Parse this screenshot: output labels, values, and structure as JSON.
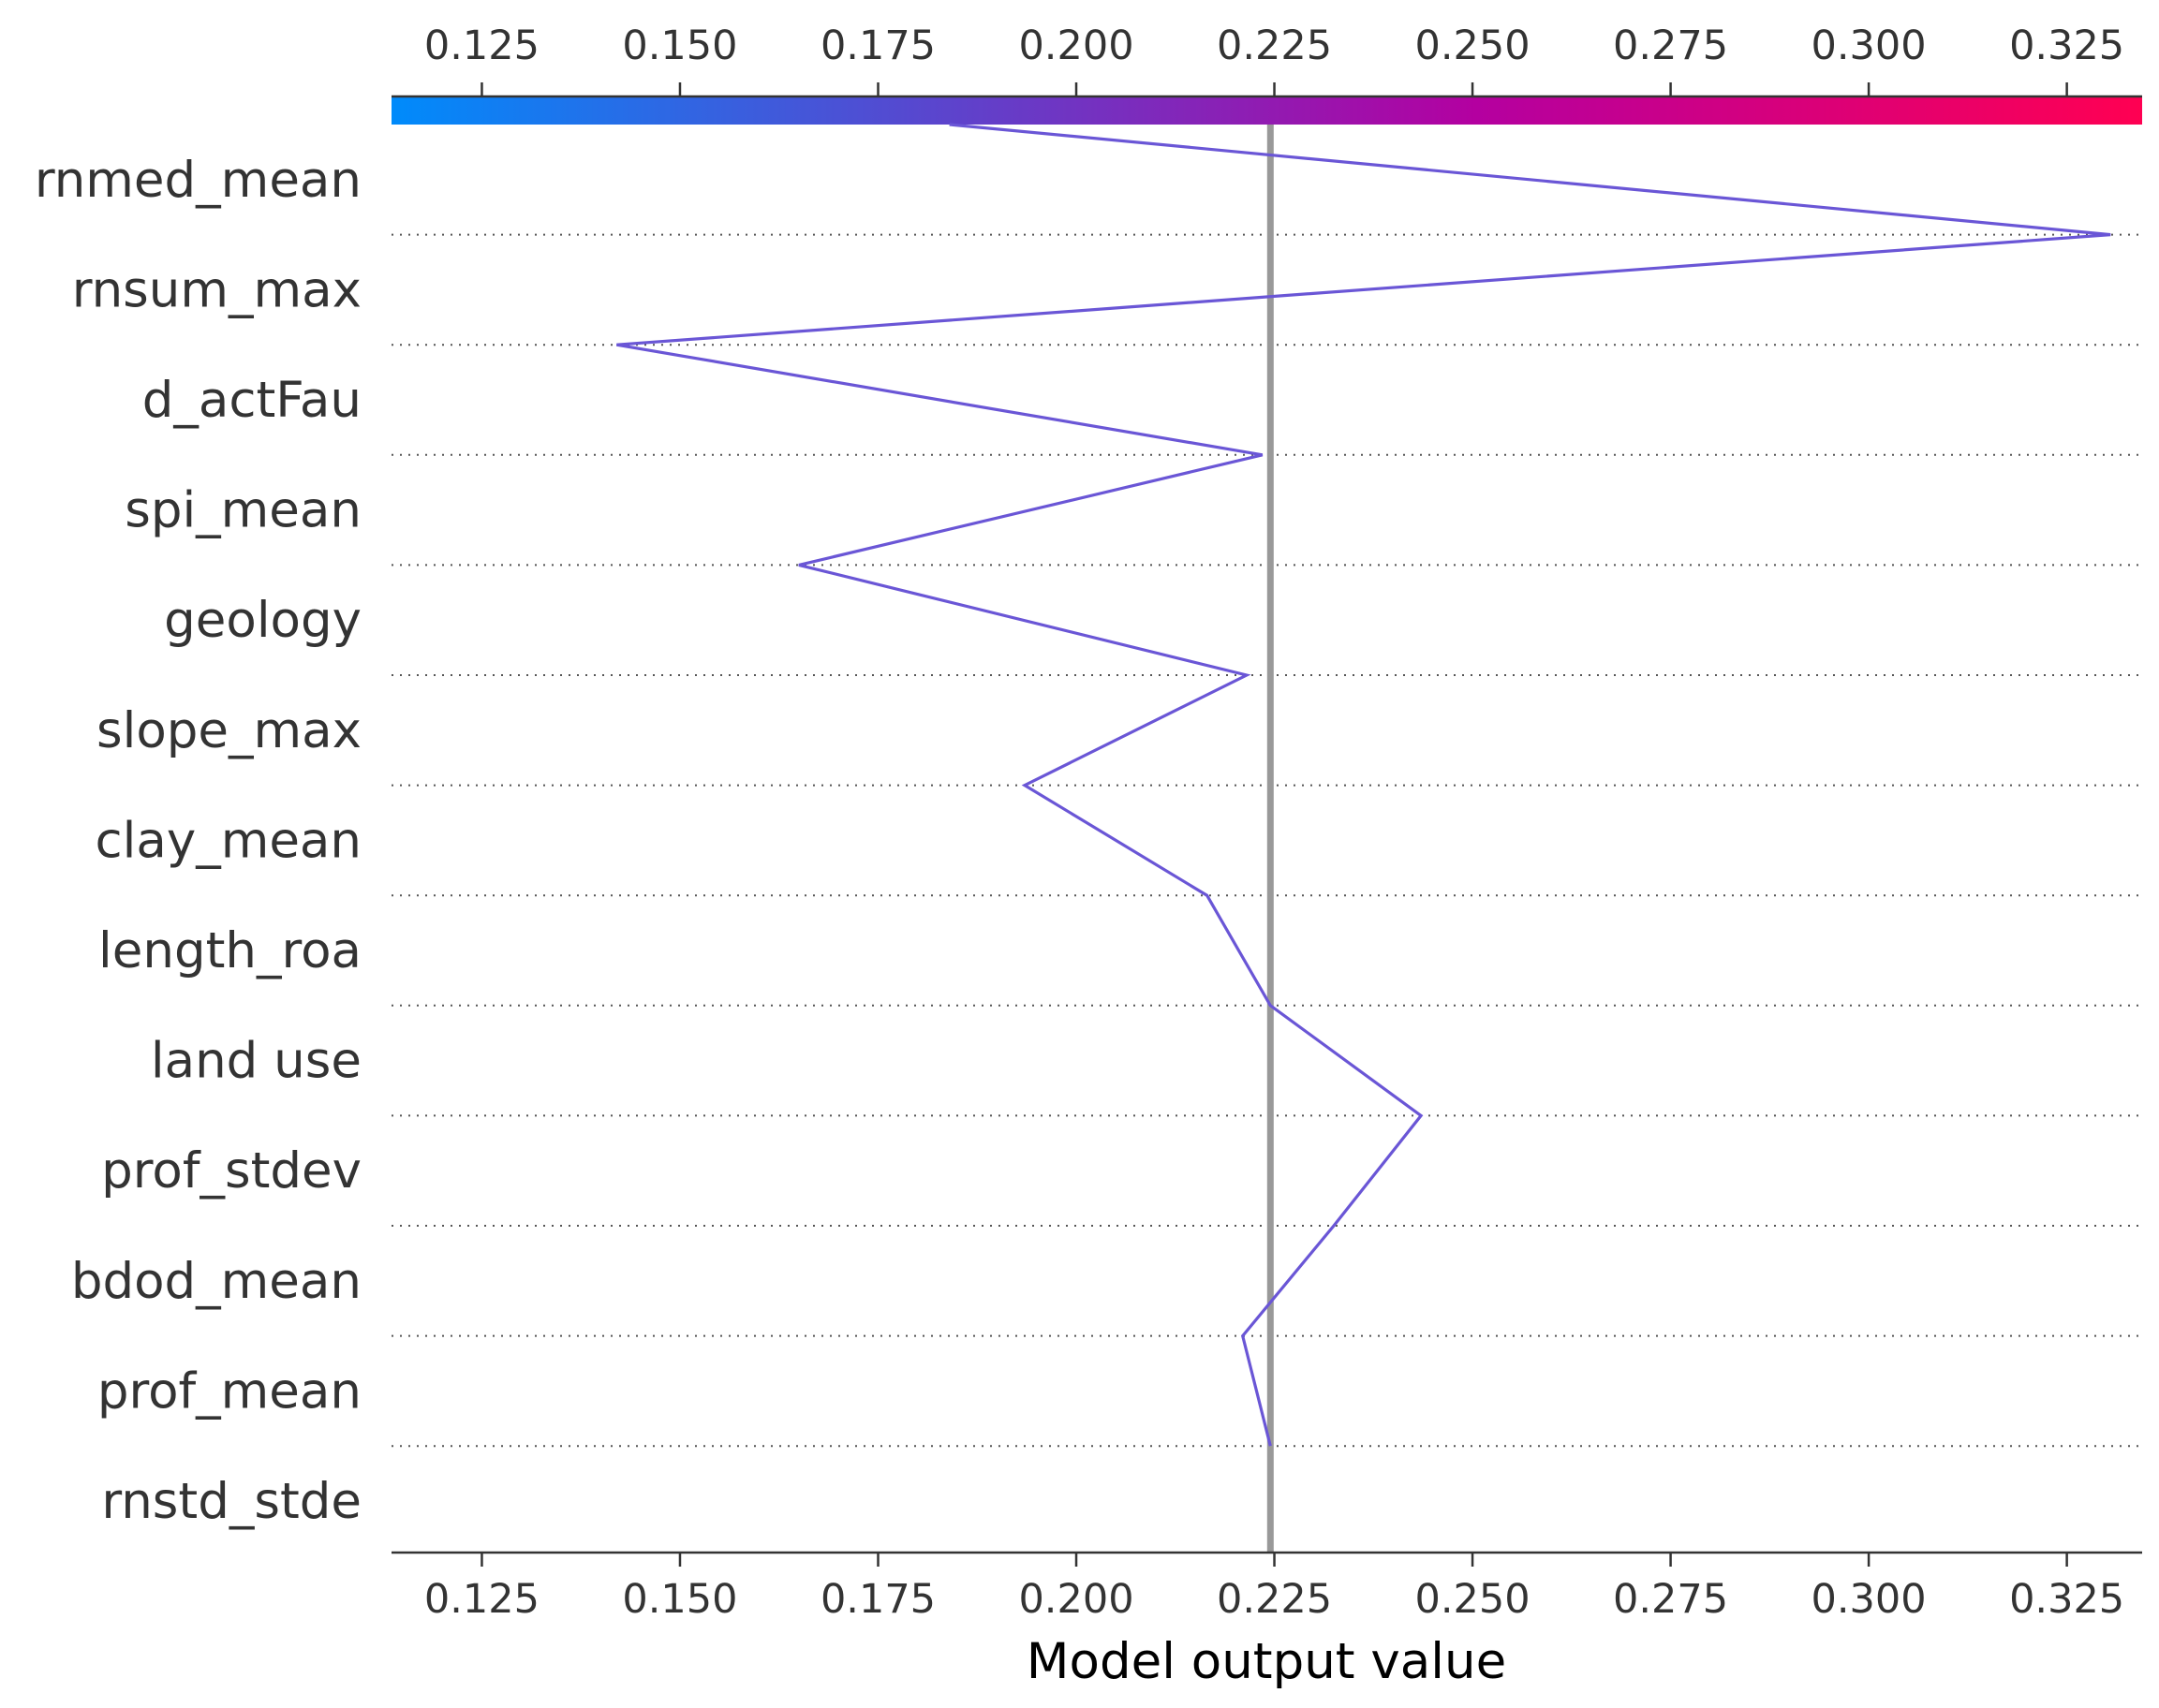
{
  "chart_data": {
    "type": "line",
    "chart_kind": "shap-decision-plot",
    "title": "",
    "xlabel": "Model output value",
    "ylabel": "",
    "xlim": [
      0.1136,
      0.3345
    ],
    "x_ticks": [
      "0.125",
      "0.150",
      "0.175",
      "0.200",
      "0.225",
      "0.250",
      "0.275",
      "0.300",
      "0.325"
    ],
    "base_value": 0.2245,
    "features": [
      "rnmed_mean",
      "rnsum_max",
      "d_actFau",
      "spi_mean",
      "geology",
      "slope_max",
      "clay_mean",
      "length_roa",
      "land use",
      "prof_stdev",
      "bdod_mean",
      "prof_mean",
      "rnstd_stde"
    ],
    "path_values": [
      0.184,
      0.3305,
      0.142,
      0.2235,
      0.165,
      0.2215,
      0.1935,
      0.2165,
      0.2245,
      0.2435,
      0.2325,
      0.221,
      0.2245
    ],
    "colorbar": {
      "low_color": "#008bfb",
      "mid_color": "#b400a0",
      "high_color": "#ff0052"
    },
    "line_color": "#6a56d6",
    "grid": "dotted horizontal per feature",
    "legend": "none"
  }
}
